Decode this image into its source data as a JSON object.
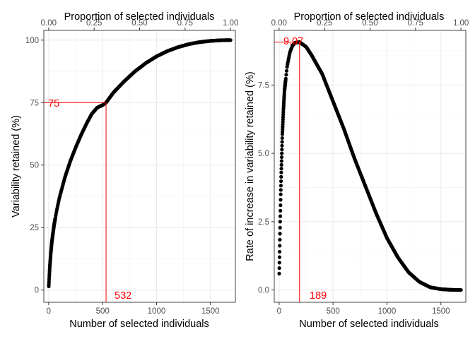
{
  "chart_data": [
    {
      "type": "scatter",
      "x_label": "Number of selected individuals",
      "y_label": "Variability retained (%)",
      "top_axis_label": "Proportion of selected individuals",
      "x_range": [
        -45,
        1731
      ],
      "y_range": [
        -4.9,
        103.9
      ],
      "x_ticks": [
        0,
        500,
        1000,
        1500
      ],
      "x_tick_labels": [
        "0",
        "500",
        "1000",
        "1500"
      ],
      "y_ticks": [
        0,
        25,
        50,
        75,
        100
      ],
      "y_tick_labels": [
        "0",
        "25",
        "50",
        "75",
        "100"
      ],
      "top_ticks": [
        0,
        0.25,
        0.5,
        0.75,
        1.0
      ],
      "top_tick_labels": [
        "0.00",
        "0.25",
        "0.50",
        "0.75",
        "1.00"
      ],
      "n_total": 1686,
      "curve": {
        "description": "monotone increasing retained-variability curve",
        "x": [
          1,
          5,
          10,
          20,
          30,
          50,
          75,
          100,
          150,
          200,
          250,
          300,
          350,
          400,
          450,
          500,
          532,
          600,
          700,
          800,
          900,
          1000,
          1100,
          1200,
          1300,
          1400,
          1500,
          1600,
          1686
        ],
        "y": [
          1.5,
          5,
          9,
          15,
          19.5,
          26,
          32,
          37,
          45,
          51.5,
          57,
          62,
          66.5,
          70.5,
          73,
          74,
          75,
          79,
          83.5,
          87.5,
          90.8,
          93.5,
          95.6,
          97.2,
          98.4,
          99.2,
          99.7,
          99.95,
          100
        ]
      },
      "highlight": {
        "x": 532,
        "y": 75,
        "x_label": "532",
        "y_label": "75",
        "color": "#ff0000"
      }
    },
    {
      "type": "scatter",
      "x_label": "Number of selected individuals",
      "y_label": "Rate of increase in variability retained (%)",
      "top_axis_label": "Proportion of selected individuals",
      "x_range": [
        -45,
        1731
      ],
      "y_range": [
        -0.45,
        9.5
      ],
      "x_ticks": [
        0,
        500,
        1000,
        1500
      ],
      "x_tick_labels": [
        "0",
        "500",
        "1000",
        "1500"
      ],
      "y_ticks": [
        0,
        2.5,
        5.0,
        7.5
      ],
      "y_tick_labels": [
        "0.0",
        "2.5",
        "5.0",
        "7.5"
      ],
      "top_ticks": [
        0,
        0.25,
        0.5,
        0.75,
        1.0
      ],
      "top_tick_labels": [
        "0.00",
        "0.25",
        "0.50",
        "0.75",
        "1.00"
      ],
      "n_total": 1686,
      "curve": {
        "description": "rise to a peak then decline",
        "x": [
          1,
          5,
          10,
          15,
          20,
          30,
          40,
          50,
          75,
          100,
          125,
          150,
          189,
          250,
          300,
          400,
          500,
          600,
          700,
          800,
          900,
          1000,
          1100,
          1200,
          1300,
          1400,
          1500,
          1600,
          1686
        ],
        "y": [
          0.6,
          1.4,
          2.5,
          3.5,
          4.3,
          5.7,
          6.6,
          7.3,
          8.2,
          8.7,
          8.95,
          9.05,
          9.07,
          8.9,
          8.6,
          7.9,
          6.9,
          5.9,
          4.8,
          3.8,
          2.8,
          1.9,
          1.2,
          0.65,
          0.3,
          0.1,
          0.03,
          0.005,
          0.0
        ]
      },
      "highlight": {
        "x": 189,
        "y": 9.07,
        "x_label": "189",
        "y_label": "9.07",
        "color": "#ff0000"
      }
    }
  ]
}
